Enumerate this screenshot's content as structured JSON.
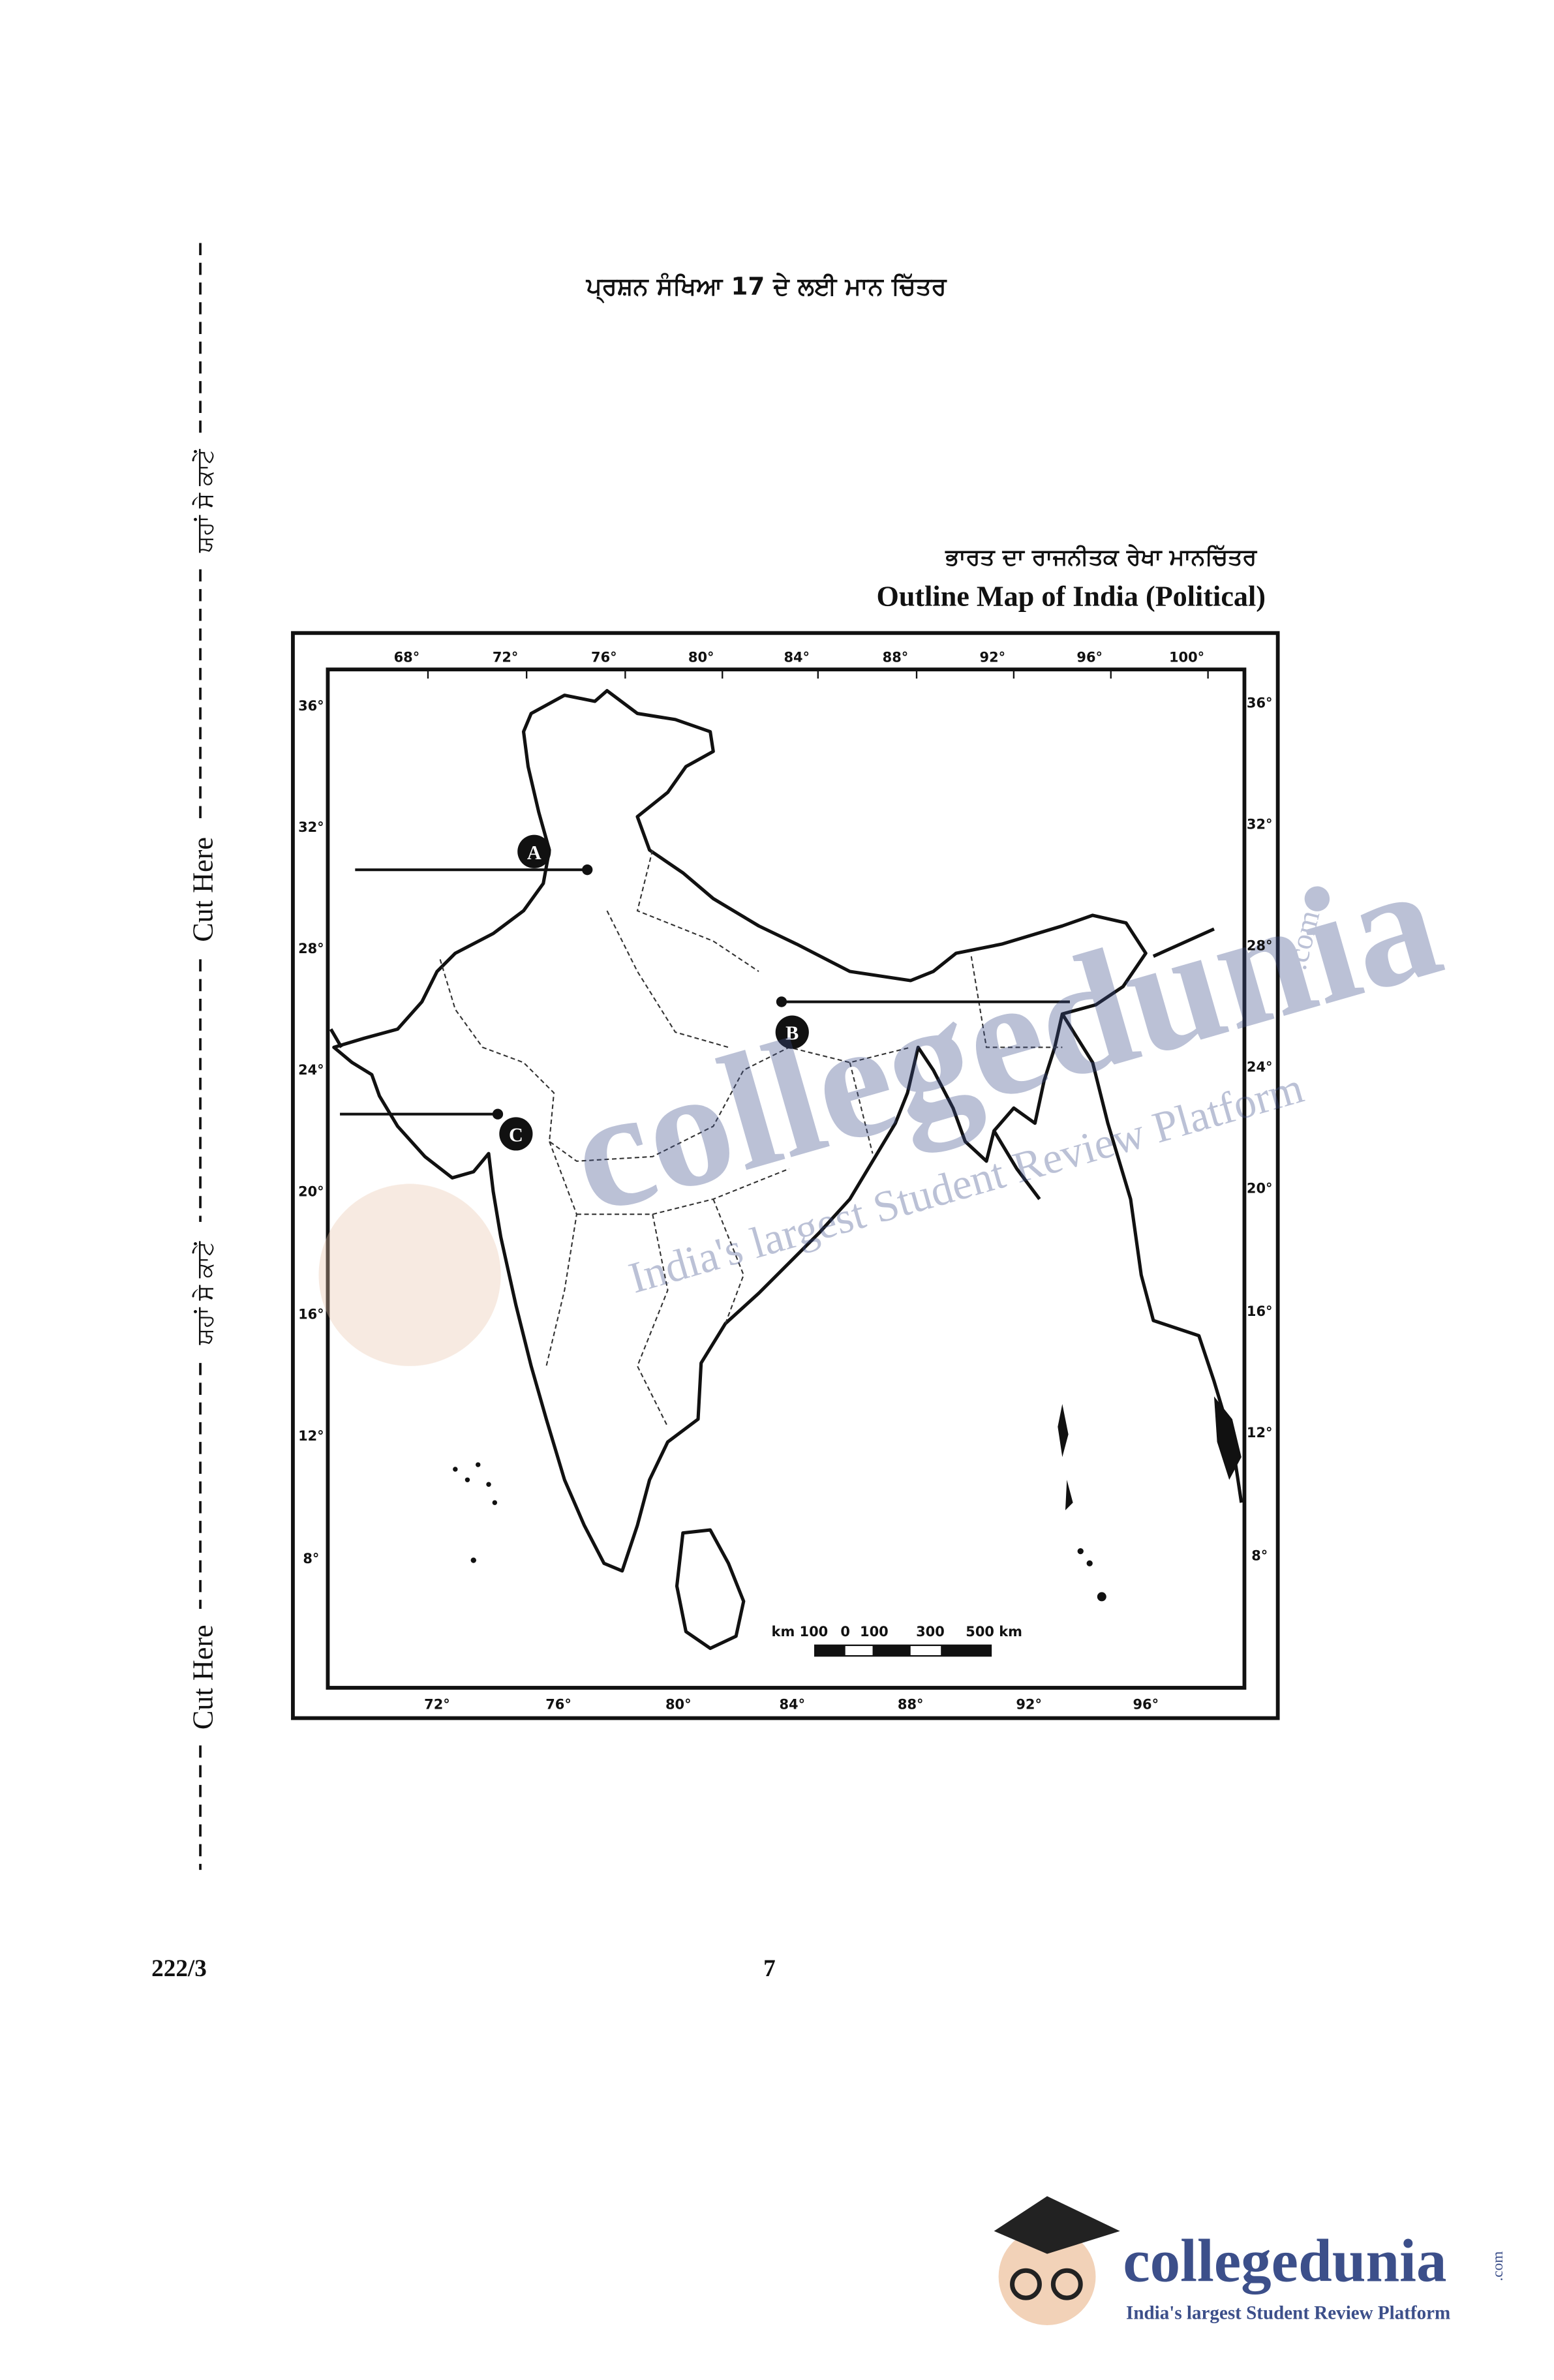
{
  "header": {
    "question_title": "ਪ੍ਰਸ਼ਨ ਸੰਖਿਆ 17 ਦੇ ਲਈ ਮਾਨ ਚਿੱਤਰ"
  },
  "margin": {
    "cut_texts": [
      "ਯਹਾਂ ਸੇ ਕਾਟੇਂ",
      "Cut Here",
      "ਯਹਾਂ ਸੇ ਕਾਟੇਂ",
      "Cut Here"
    ]
  },
  "map": {
    "title_punjabi": "ਭਾਰਤ ਦਾ ਰਾਜਨੀਤਕ ਰੇਖਾ ਮਾਨਚਿੱਤਰ",
    "title_english": "Outline Map of India (Political)",
    "top_longitudes": [
      "68°",
      "72°",
      "76°",
      "80°",
      "84°",
      "88°",
      "92°",
      "96°",
      "100°"
    ],
    "bottom_longitudes": [
      "72°",
      "76°",
      "80°",
      "84°",
      "88°",
      "92°",
      "96°"
    ],
    "left_latitudes": [
      "36°",
      "32°",
      "28°",
      "24°",
      "20°",
      "16°",
      "12°",
      "8°"
    ],
    "right_latitudes": [
      "36°",
      "32°",
      "28°",
      "24°",
      "20°",
      "16°",
      "12°",
      "8°"
    ],
    "markers": [
      "A",
      "B",
      "C"
    ],
    "scale_labels": [
      "km 100",
      "0",
      "100",
      "300",
      "500 km"
    ]
  },
  "watermark": {
    "brand": "collegedunia",
    "domain": ".com",
    "tagline": "India's largest Student Review Platform"
  },
  "footer": {
    "code": "222/3",
    "page": "7"
  },
  "logo": {
    "brand": "collegedunia",
    "domain": ".com",
    "tagline": "India's largest Student Review Platform"
  }
}
